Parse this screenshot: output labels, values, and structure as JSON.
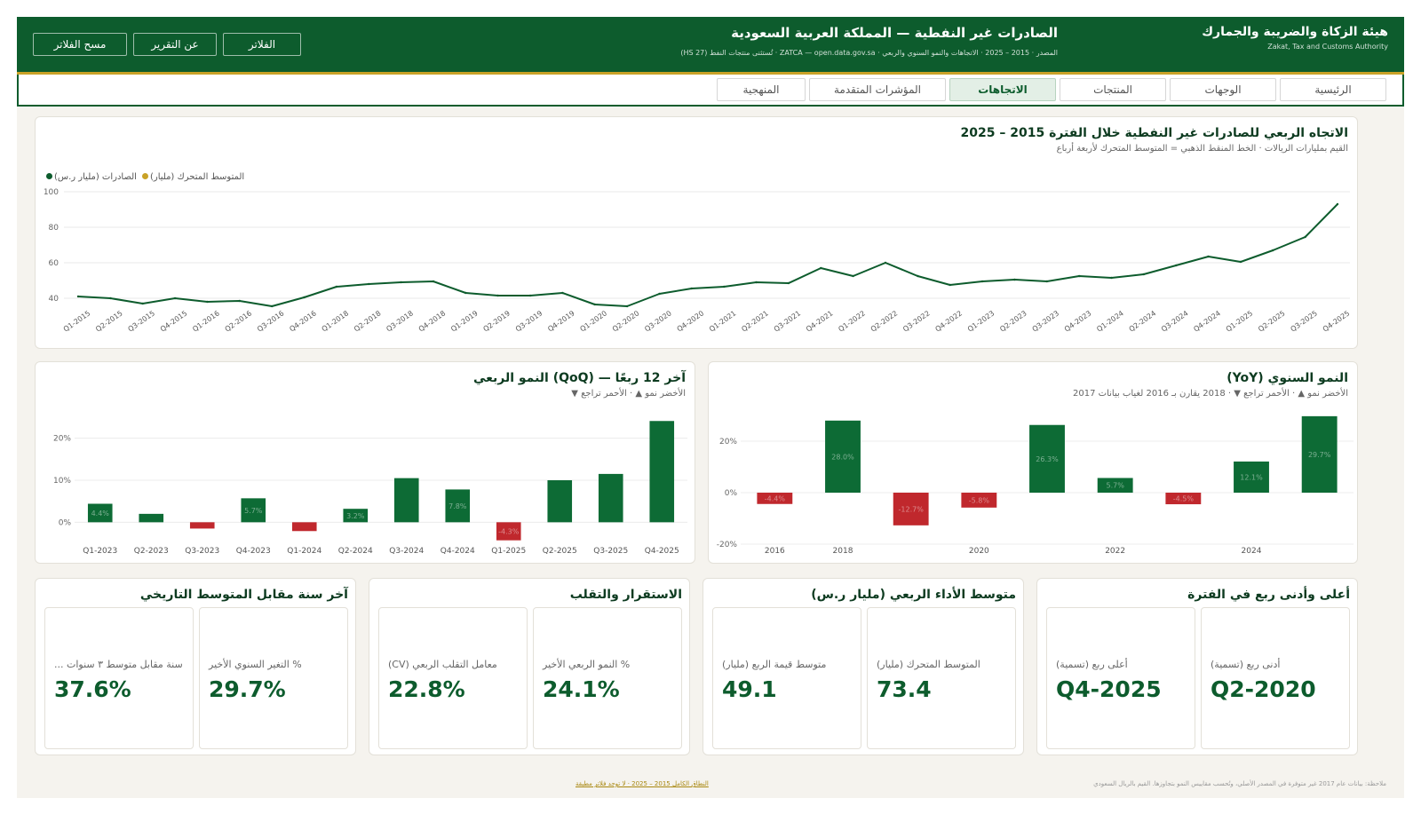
{
  "header": {
    "org_ar": "هيئة الزكاة والضريبة والجمارك",
    "org_en": "Zakat, Tax and Customs Authority",
    "title": "الصادرات غير النفطية — المملكة العربية السعودية",
    "subtitle": "المصدر · 2015 – 2025 · الاتجاهات والنمو السنوي والربعي · ZATCA — open.data.gov.sa · تُستثنى منتجات النفط (HS 27)",
    "buttons": [
      "الفلاتر",
      "عن التقرير",
      "مسح الفلاتر"
    ]
  },
  "tabs": [
    "الرئيسية",
    "الوجهات",
    "المنتجات",
    "الاتجاهات",
    "المؤشرات المتقدمة",
    "المنهجية"
  ],
  "active_tab": "الاتجاهات",
  "colors": {
    "primary": "#0d5c2d",
    "accent": "#c9a227",
    "negative": "#c0282d",
    "positive": "#0d6b35"
  },
  "trend": {
    "title": "الاتجاه الربعي للصادرات غير النفطية خلال الفترة 2015 – 2025",
    "subtitle": "القيم بمليارات الريالات · الخط المنقط الذهبي = المتوسط المتحرك لأربعة أرباع",
    "legend_exports": "الصادرات (مليار ر.س)",
    "legend_ma": "المتوسط المتحرك (مليار)"
  },
  "yoy": {
    "title": "النمو السنوي (YoY)",
    "subtitle": "الأخضر نمو ▲ · الأحمر تراجع ▼ · 2018 يقارن بـ 2016 لغياب بيانات 2017"
  },
  "qoq": {
    "title": "آخر 12 ربعًا — (QoQ) النمو الربعي",
    "subtitle": "الأخضر نمو ▲ · الأحمر تراجع ▼"
  },
  "chart_data": [
    {
      "type": "line",
      "x": [
        "Q1-2015",
        "Q2-2015",
        "Q3-2015",
        "Q4-2015",
        "Q1-2016",
        "Q2-2016",
        "Q3-2016",
        "Q4-2016",
        "Q1-2018",
        "Q2-2018",
        "Q3-2018",
        "Q4-2018",
        "Q1-2019",
        "Q2-2019",
        "Q3-2019",
        "Q4-2019",
        "Q1-2020",
        "Q2-2020",
        "Q3-2020",
        "Q4-2020",
        "Q1-2021",
        "Q2-2021",
        "Q3-2021",
        "Q4-2021",
        "Q1-2022",
        "Q2-2022",
        "Q3-2022",
        "Q4-2022",
        "Q1-2023",
        "Q2-2023",
        "Q3-2023",
        "Q4-2023",
        "Q1-2024",
        "Q2-2024",
        "Q3-2024",
        "Q4-2024",
        "Q1-2025",
        "Q2-2025",
        "Q3-2025",
        "Q4-2025"
      ],
      "series": [
        {
          "name": "الصادرات (مليار ر.س)",
          "values": [
            41,
            40,
            37,
            40,
            38,
            38.5,
            35.5,
            40.5,
            46.5,
            48,
            49,
            49.5,
            43,
            41.5,
            41.5,
            43,
            36.5,
            35.5,
            42.5,
            45.5,
            46.5,
            49,
            48.5,
            57,
            52.5,
            60,
            52.5,
            47.5,
            49.5,
            50.5,
            49.5,
            52.5,
            51.5,
            53.5,
            58.5,
            63.5,
            60.5,
            67,
            74.5,
            93
          ]
        }
      ],
      "ylim": [
        35,
        100
      ],
      "yticks": [
        40,
        60,
        80,
        100
      ],
      "grid": true,
      "legend": "top-left"
    },
    {
      "type": "bar",
      "categories": [
        "2016",
        "2018",
        "2019",
        "2020",
        "2021",
        "2022",
        "2023",
        "2024",
        "2025"
      ],
      "values": [
        -4.4,
        28.0,
        -12.7,
        -5.8,
        26.3,
        5.7,
        -4.5,
        12.1,
        29.7
      ],
      "labels": [
        "-4.4%",
        "28.0%",
        "-12.7%",
        "-5.8%",
        "26.3%",
        "5.7%",
        "-4.5%",
        "12.1%",
        "29.7%"
      ],
      "xticks": [
        "2016",
        "2018",
        "2020",
        "2022",
        "2024"
      ],
      "yticks": [
        "20%",
        "0%",
        "-20%"
      ],
      "ylim": [
        -20,
        30
      ]
    },
    {
      "type": "bar",
      "categories": [
        "Q1-2023",
        "Q2-2023",
        "Q3-2023",
        "Q4-2023",
        "Q1-2024",
        "Q2-2024",
        "Q3-2024",
        "Q4-2024",
        "Q1-2025",
        "Q2-2025",
        "Q3-2025",
        "Q4-2025"
      ],
      "values": [
        4.4,
        2.0,
        -1.5,
        5.7,
        -2.1,
        3.2,
        10.5,
        7.8,
        -4.3,
        10.0,
        11.5,
        24.1
      ],
      "labels": [
        "4.4%",
        "",
        "",
        "5.7%",
        "",
        "3.2%",
        "",
        "7.8%",
        "-4.3%",
        "",
        "",
        ""
      ],
      "yticks": [
        "20%",
        "10%",
        "0%"
      ],
      "ylim": [
        -5,
        25
      ]
    }
  ],
  "kpis": [
    {
      "title": "أعلى وأدنى ربع في الفترة",
      "items": [
        {
          "label": "أدنى ربع (تسمية)",
          "value": "Q2-2020"
        },
        {
          "label": "أعلى ربع (تسمية)",
          "value": "Q4-2025"
        }
      ]
    },
    {
      "title": "متوسط الأداء الربعي (مليار ر.س)",
      "items": [
        {
          "label": "المتوسط المتحرك (مليار)",
          "value": "73.4"
        },
        {
          "label": "متوسط قيمة الربع (مليار)",
          "value": "49.1"
        }
      ]
    },
    {
      "title": "الاستقرار والتقلب",
      "items": [
        {
          "label": "% النمو الربعي الأخير",
          "value": "24.1%"
        },
        {
          "label": "معامل التقلب الربعي (CV)",
          "value": "22.8%"
        }
      ]
    },
    {
      "title": "آخر سنة مقابل المتوسط التاريخي",
      "items": [
        {
          "label": "% التغير السنوي الأخير",
          "value": "29.7%"
        },
        {
          "label": "سنة مقابل متوسط ٣ سنوات ...",
          "value": "37.6%"
        }
      ]
    }
  ],
  "footer": {
    "note": "ملاحظة: بيانات عام 2017 غير متوفرة في المصدر الأصلي، وتُحسب مقاييس النمو بتجاوزها. القيم بالريال السعودي",
    "link": "النطاق الكامل 2015 – 2025 · لا توجد فلاتر مطبقة"
  }
}
